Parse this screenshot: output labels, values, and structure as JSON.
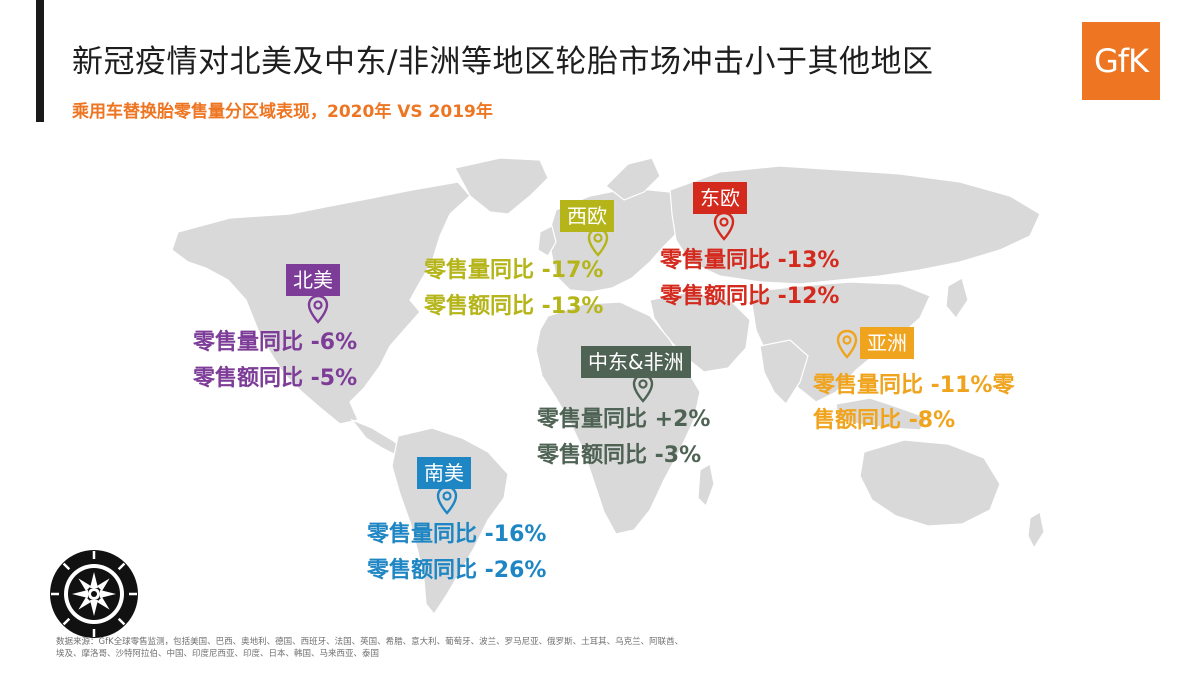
{
  "header": {
    "title": "新冠疫情对北美及中东/非洲等地区轮胎市场冲击小于其他地区",
    "subtitle": "乘用车替换胎零售量分区域表现，2020年 VS 2019年",
    "logo_text": "GfK"
  },
  "colors": {
    "accent_orange": "#ee7623",
    "north_america": "#7d3c98",
    "western_europe": "#b5b51a",
    "eastern_europe": "#d42a1e",
    "asia": "#f0a31c",
    "middle_east_africa": "#4f6355",
    "south_america": "#1f86c4",
    "map_land": "#d9d9d9"
  },
  "regions": {
    "north_america": {
      "tag": "北美",
      "volume": "零售量同比 -6%",
      "value": "零售额同比 -5%"
    },
    "western_europe": {
      "tag": "西欧",
      "volume": "零售量同比 -17%",
      "value": "零售额同比 -13%"
    },
    "eastern_europe": {
      "tag": "东欧",
      "volume": "零售量同比 -13%",
      "value": "零售额同比 -12%"
    },
    "asia": {
      "tag": "亚洲",
      "volume": "零售量同比 -11%零",
      "value": "售额同比 -8%"
    },
    "middle_east_africa": {
      "tag": "中东&非洲",
      "volume": "零售量同比 +2%",
      "value": "零售额同比 -3%"
    },
    "south_america": {
      "tag": "南美",
      "volume": "零售量同比 -16%",
      "value": "零售额同比 -26%"
    }
  },
  "footer": {
    "source_line1": "数据来源：GfK全球零售监测，包括美国、巴西、奥地利、德国、西班牙、法国、英国、希腊、意大利、葡萄牙、波兰、罗马尼亚、俄罗斯、土耳其、乌克兰、阿联酋、",
    "source_line2": "埃及、摩洛哥、沙特阿拉伯、中国、印度尼西亚、印度、日本、韩国、马来西亚、泰国"
  },
  "icons": [
    "map-pin-icon",
    "tire-icon",
    "world-map"
  ]
}
